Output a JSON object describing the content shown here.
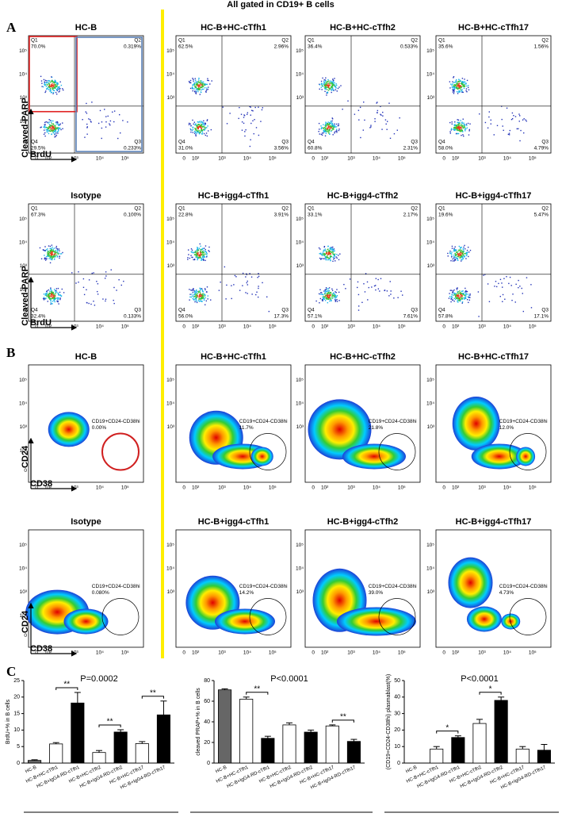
{
  "title": "All gated in CD19+ B cells",
  "panel_labels": [
    "A",
    "B",
    "C"
  ],
  "log_ticks": [
    "0",
    "10²",
    "10³",
    "10⁴",
    "10⁵"
  ],
  "panel_a": {
    "x_label": "BrdU",
    "y_label": "Cleaved-PARP",
    "plots": [
      {
        "title": "HC-B",
        "quadrants": [
          {
            "name": "Q1",
            "label": "70.0%"
          },
          {
            "name": "Q2",
            "label": "0.319%"
          },
          {
            "name": "Q3",
            "label": "0.233%"
          },
          {
            "name": "Q4",
            "label": "29.5%"
          }
        ]
      },
      {
        "title": "HC-B+HC-cTfh1",
        "quadrants": [
          {
            "name": "Q1",
            "label": "62.5%"
          },
          {
            "name": "Q2",
            "label": "2.96%"
          },
          {
            "name": "Q3",
            "label": "3.56%"
          },
          {
            "name": "Q4",
            "label": "31.0%"
          }
        ]
      },
      {
        "title": "HC-B+HC-cTfh2",
        "quadrants": [
          {
            "name": "Q1",
            "label": "36.4%"
          },
          {
            "name": "Q2",
            "label": "0.533%"
          },
          {
            "name": "Q3",
            "label": "2.31%"
          },
          {
            "name": "Q4",
            "label": "60.8%"
          }
        ]
      },
      {
        "title": "HC-B+HC-cTfh17",
        "quadrants": [
          {
            "name": "Q1",
            "label": "35.6%"
          },
          {
            "name": "Q2",
            "label": "1.56%"
          },
          {
            "name": "Q3",
            "label": "4.79%"
          },
          {
            "name": "Q4",
            "label": "58.0%"
          }
        ]
      },
      {
        "title": "Isotype",
        "quadrants": [
          {
            "name": "Q1",
            "label": "67.3%"
          },
          {
            "name": "Q2",
            "label": "0.100%"
          },
          {
            "name": "Q3",
            "label": "0.133%"
          },
          {
            "name": "Q4",
            "label": "32.4%"
          }
        ]
      },
      {
        "title": "HC-B+igg4-cTfh1",
        "quadrants": [
          {
            "name": "Q1",
            "label": "22.8%"
          },
          {
            "name": "Q2",
            "label": "3.91%"
          },
          {
            "name": "Q3",
            "label": "17.3%"
          },
          {
            "name": "Q4",
            "label": "56.0%"
          }
        ]
      },
      {
        "title": "HC-B+igg4-cTfh2",
        "quadrants": [
          {
            "name": "Q1",
            "label": "33.1%"
          },
          {
            "name": "Q2",
            "label": "2.17%"
          },
          {
            "name": "Q3",
            "label": "7.61%"
          },
          {
            "name": "Q4",
            "label": "57.1%"
          }
        ]
      },
      {
        "title": "HC-B+igg4-cTfh17",
        "quadrants": [
          {
            "name": "Q1",
            "label": "19.6%"
          },
          {
            "name": "Q2",
            "label": "5.47%"
          },
          {
            "name": "Q3",
            "label": "17.1%"
          },
          {
            "name": "Q4",
            "label": "57.8%"
          }
        ]
      }
    ]
  },
  "panel_b": {
    "x_label": "CD38",
    "y_label": "CD24",
    "gate_label": "CD19+CD24-CD38hi",
    "plots": [
      {
        "title": "HC-B",
        "label": "0.00%"
      },
      {
        "title": "HC-B+HC-cTfh1",
        "label": "11.7%"
      },
      {
        "title": "HC-B+HC-cTfh2",
        "label": "21.8%"
      },
      {
        "title": "HC-B+HC-cTfh17",
        "label": "12.0%"
      },
      {
        "title": "Isotype",
        "label": "0.080%"
      },
      {
        "title": "HC-B+igg4-cTfh1",
        "label": "14.2%"
      },
      {
        "title": "HC-B+igg4-cTfh2",
        "label": "39.0%"
      },
      {
        "title": "HC-B+igg4-cTfh17",
        "label": "4.73%"
      }
    ]
  },
  "chart_data": [
    {
      "type": "bar",
      "y_label": "BrdU+% in B cells",
      "annotation": "P=0.0002",
      "categories": [
        "HC-B",
        "HC-B+HC-cTfh1",
        "HC-B+IgG4-RD-cTfh1",
        "HC-B+HC-cTfh2",
        "HC-B+IgG4-RD-cTfh2",
        "HC-B+HC-cTfh17",
        "HC-B+IgG4-RD-cTfh17"
      ],
      "values": [
        0.8,
        5.8,
        18.2,
        3.2,
        9.4,
        5.9,
        14.6
      ],
      "errors": [
        0.2,
        0.4,
        3.2,
        0.6,
        0.7,
        0.6,
        4.2
      ],
      "colors": [
        "#666666",
        "#ffffff",
        "#000000",
        "#ffffff",
        "#000000",
        "#ffffff",
        "#000000"
      ],
      "ylim": [
        0,
        25
      ],
      "yticks": [
        0,
        5,
        10,
        15,
        20,
        25
      ],
      "significance": [
        {
          "label": "**",
          "between": [
            "HC-B+HC-cTfh1",
            "HC-B+IgG4-RD-cTfh1"
          ]
        },
        {
          "label": "**",
          "between": [
            "HC-B+HC-cTfh2",
            "HC-B+IgG4-RD-cTfh2"
          ]
        },
        {
          "label": "**",
          "between": [
            "HC-B+HC-cTfh17",
            "HC-B+IgG4-RD-cTfh17"
          ]
        }
      ]
    },
    {
      "type": "bar",
      "y_label": "cleaved PRAP+% in B cells",
      "annotation": "P<0.0001",
      "categories": [
        "HC-B",
        "HC-B+HC-cTfh1",
        "HC-B+IgG4-RD-cTfh1",
        "HC-B+HC-cTfh2",
        "HC-B+IgG4-RD-cTfh2",
        "HC-B+HC-cTfh17",
        "HC-B+IgG4-RD-cTfh17"
      ],
      "values": [
        71,
        62,
        24,
        37,
        30,
        36,
        21
      ],
      "errors": [
        1,
        2,
        2,
        2,
        2,
        1,
        2
      ],
      "colors": [
        "#666666",
        "#ffffff",
        "#000000",
        "#ffffff",
        "#000000",
        "#ffffff",
        "#000000"
      ],
      "ylim": [
        0,
        80
      ],
      "yticks": [
        0,
        20,
        40,
        60,
        80
      ],
      "significance": [
        {
          "label": "**",
          "between": [
            "HC-B+HC-cTfh1",
            "HC-B+IgG4-RD-cTfh1"
          ]
        },
        {
          "label": "**",
          "between": [
            "HC-B+HC-cTfh17",
            "HC-B+IgG4-RD-cTfh17"
          ]
        }
      ]
    },
    {
      "type": "bar",
      "y_label": "(CD19+CD24-CD38hi) plasmablast(%)",
      "annotation": "P<0.0001",
      "categories": [
        "HC-B",
        "HC-B+HC-cTfh1",
        "HC-B+IgG4-RD-cTfh1",
        "HC-B+HC-cTfh2",
        "HC-B+IgG4-RD-cTfh2",
        "HC-B+HC-cTfh17",
        "HC-B+IgG4-RD-cTfh17"
      ],
      "values": [
        0,
        8.5,
        15.5,
        24,
        38,
        8.5,
        7.8
      ],
      "errors": [
        0,
        1.5,
        1,
        2.5,
        2,
        1.5,
        3.5
      ],
      "colors": [
        "#666666",
        "#ffffff",
        "#000000",
        "#ffffff",
        "#000000",
        "#ffffff",
        "#000000"
      ],
      "ylim": [
        0,
        50
      ],
      "yticks": [
        0,
        10,
        20,
        30,
        40,
        50
      ],
      "significance": [
        {
          "label": "*",
          "between": [
            "HC-B+HC-cTfh1",
            "HC-B+IgG4-RD-cTfh1"
          ]
        },
        {
          "label": "*",
          "between": [
            "HC-B+HC-cTfh2",
            "HC-B+IgG4-RD-cTfh2"
          ]
        }
      ]
    }
  ]
}
